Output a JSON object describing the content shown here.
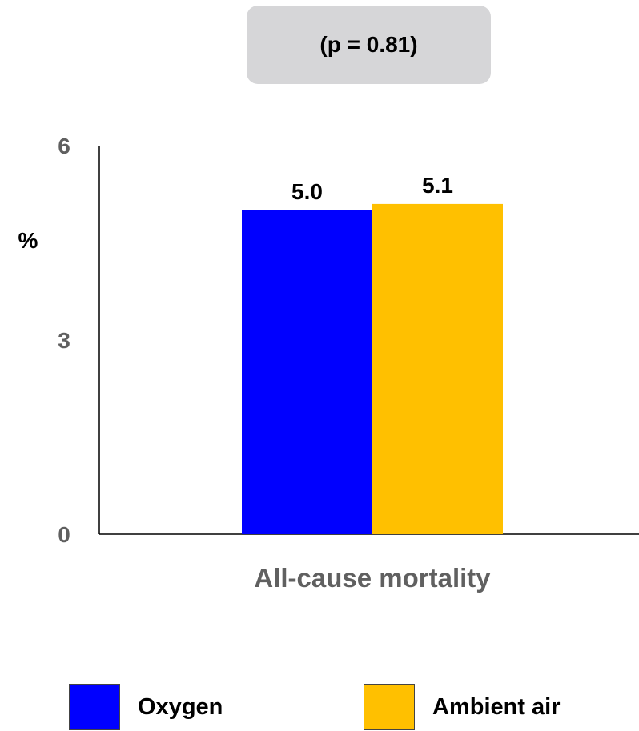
{
  "annotation": {
    "p_value_text": "(p = 0.81)"
  },
  "chart_data": {
    "type": "bar",
    "title": "",
    "xlabel": "",
    "ylabel": "%",
    "ylim": [
      0,
      6
    ],
    "yticks": [
      "0",
      "3",
      "6"
    ],
    "categories": [
      "All-cause mortality"
    ],
    "series": [
      {
        "name": "Oxygen",
        "values": [
          5.0
        ],
        "value_labels": [
          "5.0"
        ],
        "color": "#0000ff"
      },
      {
        "name": "Ambient air",
        "values": [
          5.1
        ],
        "value_labels": [
          "5.1"
        ],
        "color": "#ffc000"
      }
    ],
    "grid": false,
    "legend": "bottom"
  },
  "colors": {
    "tick_text": "#606060",
    "category_text": "#606060",
    "axis": "#000000",
    "annotation_bg": "#d6d6d8"
  },
  "legend": {
    "items": [
      {
        "label": "Oxygen",
        "color": "#0000ff"
      },
      {
        "label": "Ambient air",
        "color": "#ffc000"
      }
    ]
  }
}
